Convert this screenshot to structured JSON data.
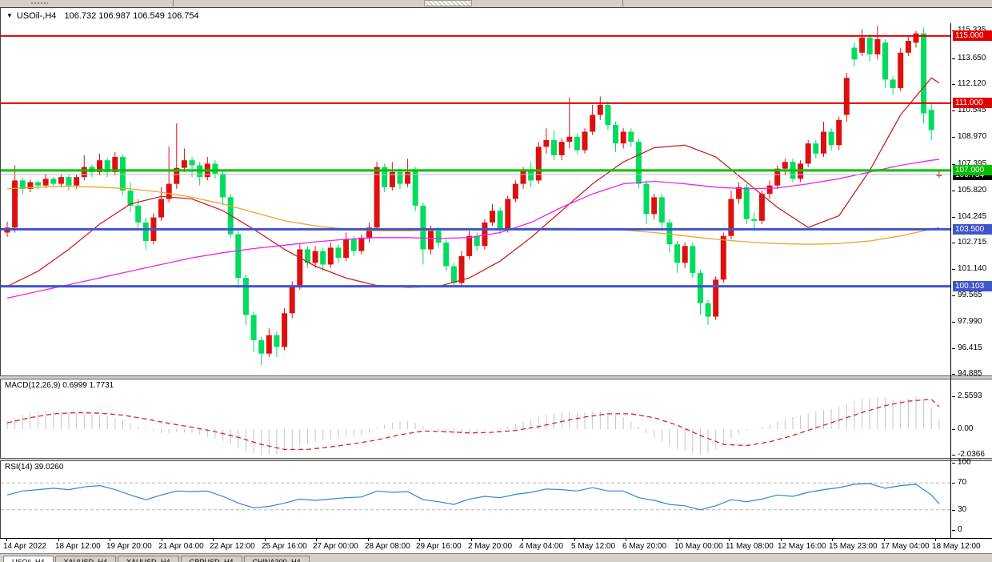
{
  "chart_window": {
    "title": {
      "dropdown_icon": "▼",
      "symbol": "USOil-,H4",
      "ohlc": "106.732 106.987 106.549 106.754"
    },
    "price_axis": {
      "ticks": [
        "115.335",
        "113.650",
        "112.120",
        "110.545",
        "108.970",
        "107.395",
        "105.820",
        "104.245",
        "102.715",
        "101.140",
        "99.565",
        "97.990",
        "96.415",
        "94.885"
      ],
      "badges": [
        {
          "text": "106.754",
          "price": 106.754,
          "bg": "#000000"
        },
        {
          "text": "115.000",
          "price": 115.0,
          "bg": "#e00000"
        },
        {
          "text": "111.000",
          "price": 111.0,
          "bg": "#e00000"
        },
        {
          "text": "107.000",
          "price": 107.0,
          "bg": "#00c000"
        },
        {
          "text": "103.500",
          "price": 103.5,
          "bg": "#4055cc"
        },
        {
          "text": "100.103",
          "price": 100.103,
          "bg": "#4055cc"
        }
      ]
    },
    "hlines": [
      {
        "price": 115.0,
        "color": "#e00000",
        "w": 2
      },
      {
        "price": 111.0,
        "color": "#e00000",
        "w": 2
      },
      {
        "price": 107.0,
        "color": "#00c000",
        "w": 3
      },
      {
        "price": 103.5,
        "color": "#4055cc",
        "w": 3
      },
      {
        "price": 100.103,
        "color": "#4055cc",
        "w": 3
      }
    ],
    "current_price_line": {
      "price": 106.754,
      "color": "#c0c0c0"
    }
  },
  "chart_data": {
    "type": "candlestick",
    "symbol": "USOil-,H4",
    "bull_color": "#dd1010",
    "bear_color": "#00dc5f",
    "x_labels": [
      "14 Apr 2022",
      "18 Apr 12:00",
      "19 Apr 20:00",
      "21 Apr 04:00",
      "22 Apr 12:00",
      "25 Apr 16:00",
      "27 Apr 00:00",
      "28 Apr 08:00",
      "29 Apr 16:00",
      "2 May 20:00",
      "4 May 04:00",
      "5 May 12:00",
      "6 May 20:00",
      "10 May 00:00",
      "11 May 08:00",
      "12 May 16:00",
      "15 May 23:00",
      "17 May 04:00",
      "18 May 12:00"
    ],
    "y_range": [
      94.885,
      115.335
    ],
    "candles": [
      [
        103.3,
        103.95,
        103.05,
        103.6
      ],
      [
        103.6,
        107.3,
        103.3,
        106.4
      ],
      [
        106.4,
        106.55,
        105.6,
        105.9
      ],
      [
        105.9,
        106.45,
        105.7,
        106.3
      ],
      [
        106.3,
        106.4,
        105.85,
        106.1
      ],
      [
        106.1,
        106.8,
        105.95,
        106.5
      ],
      [
        106.5,
        106.6,
        106.0,
        106.2
      ],
      [
        106.2,
        106.75,
        106.0,
        106.6
      ],
      [
        106.6,
        106.7,
        105.8,
        106.1
      ],
      [
        106.1,
        106.75,
        105.9,
        106.6
      ],
      [
        106.6,
        107.9,
        106.4,
        107.2
      ],
      [
        107.2,
        107.35,
        106.6,
        106.9
      ],
      [
        106.9,
        108.0,
        106.7,
        107.6
      ],
      [
        107.6,
        107.75,
        106.6,
        106.9
      ],
      [
        106.9,
        108.1,
        106.7,
        107.8
      ],
      [
        107.8,
        107.95,
        105.5,
        105.8
      ],
      [
        105.8,
        106.3,
        104.5,
        104.9
      ],
      [
        104.9,
        105.3,
        103.6,
        103.9
      ],
      [
        103.9,
        104.2,
        102.3,
        102.8
      ],
      [
        102.8,
        104.45,
        102.6,
        104.2
      ],
      [
        104.2,
        106.0,
        104.0,
        105.3
      ],
      [
        105.3,
        108.4,
        105.1,
        106.2
      ],
      [
        106.2,
        109.8,
        105.9,
        107.15
      ],
      [
        107.15,
        108.3,
        106.9,
        107.6
      ],
      [
        107.6,
        107.8,
        106.6,
        107.3
      ],
      [
        107.3,
        107.5,
        106.1,
        106.6
      ],
      [
        106.6,
        107.8,
        106.4,
        107.4
      ],
      [
        107.4,
        107.6,
        106.5,
        106.8
      ],
      [
        106.8,
        107.0,
        104.9,
        105.4
      ],
      [
        105.4,
        105.6,
        103.0,
        103.2
      ],
      [
        103.2,
        103.4,
        100.0,
        100.6
      ],
      [
        100.6,
        100.8,
        97.8,
        98.4
      ],
      [
        98.4,
        98.6,
        96.2,
        96.9
      ],
      [
        96.9,
        97.1,
        95.4,
        96.1
      ],
      [
        96.1,
        97.6,
        95.9,
        97.2
      ],
      [
        97.2,
        97.4,
        95.9,
        96.5
      ],
      [
        96.5,
        98.8,
        96.3,
        98.5
      ],
      [
        98.5,
        100.4,
        98.2,
        100.1
      ],
      [
        100.1,
        102.6,
        99.9,
        102.3
      ],
      [
        102.3,
        102.5,
        101.2,
        101.5
      ],
      [
        101.5,
        102.5,
        101.2,
        102.2
      ],
      [
        102.2,
        102.4,
        101.0,
        101.4
      ],
      [
        101.4,
        102.7,
        101.2,
        102.4
      ],
      [
        102.4,
        102.6,
        101.5,
        101.8
      ],
      [
        101.8,
        103.3,
        101.6,
        102.9
      ],
      [
        102.9,
        103.1,
        101.9,
        102.2
      ],
      [
        102.2,
        103.2,
        102.0,
        103.0
      ],
      [
        103.0,
        103.9,
        102.7,
        103.6
      ],
      [
        103.6,
        107.5,
        103.4,
        107.2
      ],
      [
        107.2,
        107.4,
        105.7,
        106.0
      ],
      [
        106.0,
        107.5,
        105.8,
        106.9
      ],
      [
        106.9,
        107.1,
        105.9,
        106.2
      ],
      [
        106.2,
        107.7,
        106.0,
        106.9
      ],
      [
        107.0,
        107.2,
        104.6,
        104.9
      ],
      [
        104.9,
        105.1,
        101.4,
        102.3
      ],
      [
        102.3,
        103.7,
        102.0,
        103.4
      ],
      [
        103.4,
        103.6,
        102.4,
        102.7
      ],
      [
        102.7,
        102.9,
        101.0,
        101.3
      ],
      [
        101.3,
        101.5,
        100.05,
        100.3
      ],
      [
        100.3,
        102.2,
        100.1,
        101.9
      ],
      [
        101.9,
        103.4,
        101.7,
        103.1
      ],
      [
        103.1,
        103.3,
        102.2,
        102.5
      ],
      [
        102.5,
        104.1,
        102.3,
        103.9
      ],
      [
        103.9,
        105.0,
        103.7,
        104.6
      ],
      [
        104.6,
        104.8,
        103.2,
        103.5
      ],
      [
        103.5,
        105.5,
        103.3,
        105.3
      ],
      [
        105.3,
        106.4,
        105.1,
        106.2
      ],
      [
        106.2,
        107.2,
        105.9,
        107.0
      ],
      [
        107.0,
        107.5,
        106.0,
        106.4
      ],
      [
        106.4,
        108.7,
        106.2,
        108.4
      ],
      [
        108.4,
        109.5,
        108.0,
        108.8
      ],
      [
        108.8,
        109.4,
        107.6,
        107.9
      ],
      [
        107.9,
        108.9,
        107.6,
        108.7
      ],
      [
        108.7,
        111.35,
        108.3,
        109.0
      ],
      [
        109.0,
        109.2,
        108.0,
        108.2
      ],
      [
        108.2,
        109.5,
        108.0,
        109.3
      ],
      [
        109.3,
        110.9,
        109.1,
        110.3
      ],
      [
        110.3,
        111.4,
        110.0,
        110.9
      ],
      [
        110.9,
        111.1,
        109.4,
        109.7
      ],
      [
        109.7,
        109.9,
        108.1,
        108.6
      ],
      [
        108.6,
        109.5,
        108.3,
        109.3
      ],
      [
        109.3,
        109.5,
        108.4,
        108.7
      ],
      [
        108.7,
        108.9,
        105.9,
        106.2
      ],
      [
        106.2,
        106.4,
        103.8,
        104.4
      ],
      [
        104.4,
        105.6,
        104.1,
        105.4
      ],
      [
        105.4,
        105.6,
        103.6,
        103.9
      ],
      [
        103.9,
        104.1,
        102.1,
        102.6
      ],
      [
        102.6,
        102.8,
        100.9,
        101.5
      ],
      [
        101.5,
        102.7,
        101.2,
        102.5
      ],
      [
        102.5,
        102.7,
        100.6,
        100.9
      ],
      [
        100.9,
        101.1,
        98.4,
        99.1
      ],
      [
        99.1,
        99.3,
        97.8,
        98.3
      ],
      [
        98.3,
        100.7,
        98.1,
        100.5
      ],
      [
        100.5,
        103.3,
        100.3,
        103.1
      ],
      [
        103.1,
        105.8,
        102.9,
        105.3
      ],
      [
        105.3,
        106.3,
        105.0,
        106.0
      ],
      [
        106.0,
        106.2,
        103.8,
        104.1
      ],
      [
        104.1,
        104.5,
        103.4,
        104.0
      ],
      [
        104.0,
        105.8,
        103.8,
        105.6
      ],
      [
        105.6,
        106.4,
        105.3,
        106.1
      ],
      [
        106.1,
        107.3,
        105.9,
        107.1
      ],
      [
        107.1,
        107.7,
        106.7,
        107.5
      ],
      [
        107.5,
        107.7,
        106.3,
        106.5
      ],
      [
        106.5,
        107.6,
        106.3,
        107.4
      ],
      [
        107.4,
        108.8,
        107.2,
        108.6
      ],
      [
        108.6,
        108.8,
        107.7,
        108.0
      ],
      [
        108.0,
        109.9,
        107.8,
        109.3
      ],
      [
        109.3,
        109.5,
        108.2,
        108.5
      ],
      [
        108.5,
        110.2,
        108.2,
        110.0
      ],
      [
        110.3,
        112.8,
        109.9,
        112.5
      ],
      [
        114.3,
        114.6,
        113.2,
        113.6
      ],
      [
        114.0,
        115.4,
        113.8,
        114.9
      ],
      [
        114.9,
        115.1,
        113.5,
        113.9
      ],
      [
        113.9,
        115.6,
        113.6,
        114.8
      ],
      [
        114.6,
        114.8,
        111.9,
        112.4
      ],
      [
        112.4,
        112.6,
        111.5,
        111.9
      ],
      [
        111.9,
        114.3,
        111.7,
        114.0
      ],
      [
        114.0,
        115.0,
        113.8,
        114.7
      ],
      [
        114.6,
        115.3,
        114.3,
        115.15
      ],
      [
        115.15,
        115.5,
        109.8,
        110.4
      ],
      [
        110.6,
        111.0,
        108.8,
        109.4
      ],
      [
        106.732,
        106.987,
        106.549,
        106.754
      ]
    ],
    "moving_averages": [
      {
        "name": "ma-red",
        "color": "#cc2020",
        "step": 4,
        "values": [
          100.1,
          101.0,
          102.3,
          103.8,
          105.0,
          105.45,
          105.3,
          104.6,
          103.5,
          102.3,
          101.3,
          100.6,
          100.15,
          100.05,
          100.1,
          100.6,
          101.6,
          103.0,
          104.6,
          106.2,
          107.5,
          108.35,
          108.5,
          107.8,
          106.3,
          104.8,
          103.6,
          104.3,
          107.0,
          110.3,
          112.5,
          112.2
        ]
      },
      {
        "name": "ma-magenta",
        "color": "#ee22ee",
        "step": 4,
        "values": [
          99.4,
          99.8,
          100.2,
          100.6,
          101.0,
          101.4,
          101.8,
          102.1,
          102.35,
          102.55,
          102.75,
          102.9,
          103.0,
          103.0,
          102.95,
          103.0,
          103.3,
          103.9,
          104.8,
          105.6,
          106.2,
          106.35,
          106.2,
          106.0,
          105.9,
          105.95,
          106.2,
          106.5,
          106.9,
          107.3,
          107.6,
          107.65
        ]
      },
      {
        "name": "ma-orange",
        "color": "#eea32c",
        "step": 4,
        "values": [
          105.9,
          106.0,
          106.05,
          106.0,
          105.9,
          105.7,
          105.4,
          105.0,
          104.5,
          104.0,
          103.7,
          103.5,
          103.4,
          103.4,
          103.45,
          103.5,
          103.5,
          103.55,
          103.55,
          103.5,
          103.45,
          103.3,
          103.1,
          102.9,
          102.75,
          102.65,
          102.6,
          102.65,
          102.8,
          103.1,
          103.5,
          103.6
        ]
      }
    ],
    "indicators": [
      {
        "name": "MACD",
        "label": "MACD(12,26,9) 0.6999 1.7731",
        "axis": [
          "2.5593",
          "0.00",
          "-2.0366"
        ],
        "hist_color": "#c4c4c4",
        "signal_color": "#e02020",
        "hist": [
          0.6,
          0.9,
          1.1,
          1.3,
          1.4,
          1.45,
          1.4,
          1.35,
          1.3,
          1.25,
          1.2,
          1.15,
          1.1,
          1.0,
          0.9,
          0.7,
          0.45,
          0.2,
          -0.05,
          -0.2,
          -0.3,
          -0.3,
          -0.25,
          -0.25,
          -0.3,
          -0.45,
          -0.6,
          -0.75,
          -0.95,
          -1.2,
          -1.5,
          -1.75,
          -1.95,
          -2.04,
          -2.0,
          -1.95,
          -1.8,
          -1.6,
          -1.35,
          -1.15,
          -1.0,
          -0.9,
          -0.8,
          -0.7,
          -0.6,
          -0.55,
          -0.45,
          -0.3,
          0.1,
          0.35,
          0.5,
          0.6,
          0.65,
          0.5,
          0.2,
          -0.05,
          -0.2,
          -0.35,
          -0.5,
          -0.45,
          -0.3,
          -0.2,
          -0.1,
          0.0,
          0.05,
          0.2,
          0.4,
          0.6,
          0.75,
          0.95,
          1.15,
          1.25,
          1.3,
          1.35,
          1.3,
          1.3,
          1.35,
          1.4,
          1.3,
          1.1,
          0.9,
          0.6,
          0.2,
          -0.3,
          -0.7,
          -1.0,
          -1.3,
          -1.55,
          -1.7,
          -1.85,
          -1.95,
          -1.9,
          -1.6,
          -1.2,
          -0.75,
          -0.35,
          -0.1,
          0.0,
          0.15,
          0.35,
          0.6,
          0.8,
          0.95,
          1.1,
          1.25,
          1.35,
          1.5,
          1.6,
          1.75,
          1.95,
          2.2,
          2.35,
          2.45,
          2.5,
          2.45,
          2.3,
          2.3,
          2.4,
          2.56,
          2.3,
          1.7,
          0.6999
        ],
        "signal": {
          "step": 3,
          "values": [
            0.5,
            0.9,
            1.2,
            1.3,
            1.25,
            1.1,
            0.8,
            0.45,
            0.15,
            -0.2,
            -0.65,
            -1.2,
            -1.6,
            -1.6,
            -1.4,
            -1.15,
            -0.85,
            -0.45,
            -0.15,
            -0.2,
            -0.3,
            -0.25,
            -0.1,
            0.2,
            0.6,
            0.95,
            1.2,
            1.2,
            0.9,
            0.3,
            -0.5,
            -1.2,
            -1.3,
            -1.0,
            -0.5,
            0.1,
            0.7,
            1.3,
            1.85,
            2.2,
            2.35,
            1.77
          ]
        }
      },
      {
        "name": "RSI",
        "label": "RSI(14) 39.0260",
        "axis": [
          "100",
          "70",
          "30",
          "0"
        ],
        "levels": [
          70,
          30
        ],
        "line_color": "#2e86d8",
        "line": {
          "step": 2,
          "values": [
            52,
            58,
            60,
            62,
            60,
            64,
            66,
            60,
            52,
            45,
            52,
            58,
            57,
            58,
            50,
            40,
            33,
            35,
            40,
            46,
            44,
            46,
            48,
            49,
            58,
            56,
            57,
            45,
            42,
            38,
            46,
            50,
            48,
            53,
            56,
            61,
            60,
            58,
            63,
            58,
            58,
            48,
            44,
            38,
            36,
            30,
            36,
            45,
            42,
            46,
            52,
            50,
            56,
            60,
            63,
            68,
            69,
            62,
            66,
            68,
            52,
            39.03
          ]
        }
      }
    ]
  },
  "bottom_tabs": {
    "labels": [
      "USOil-,H4",
      "XAUUSD-,H4",
      "XAUUSD-,H4",
      "GBPUSD-,H4",
      "CHINA300-,H4"
    ]
  }
}
